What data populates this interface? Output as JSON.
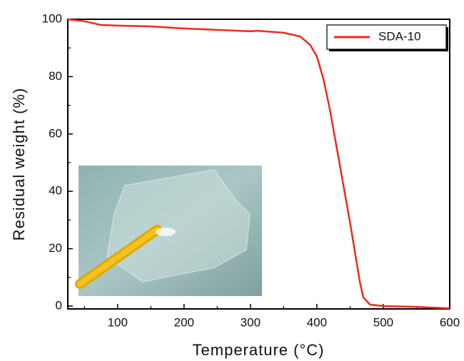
{
  "chart_data": {
    "type": "line",
    "x_label": "Temperature (°C)",
    "y_label": "Residual weight (%)",
    "x": [
      25,
      50,
      75,
      100,
      150,
      200,
      250,
      300,
      310,
      350,
      375,
      390,
      400,
      410,
      420,
      430,
      440,
      450,
      460,
      465,
      470,
      480,
      500,
      550,
      600
    ],
    "series": [
      {
        "name": "SDA-10",
        "color": "#ee2a1e",
        "values": [
          100,
          99.3,
          98,
          97.8,
          97.5,
          96.8,
          96.3,
          95.8,
          96,
          95.3,
          94,
          91,
          87,
          79,
          68,
          55,
          42,
          29,
          15,
          8,
          3,
          0.5,
          0,
          -0.3,
          -0.8
        ]
      }
    ],
    "xlim": [
      25,
      600
    ],
    "ylim": [
      -1,
      100
    ],
    "xticks": [
      100,
      200,
      300,
      400,
      500,
      600
    ],
    "yticks": [
      0,
      20,
      40,
      60,
      80,
      100
    ],
    "x_minor_ticks": [
      50,
      150,
      250,
      350,
      450,
      550
    ],
    "y_minor_ticks": [
      10,
      30,
      50,
      70,
      90
    ],
    "legend": "upper right"
  }
}
